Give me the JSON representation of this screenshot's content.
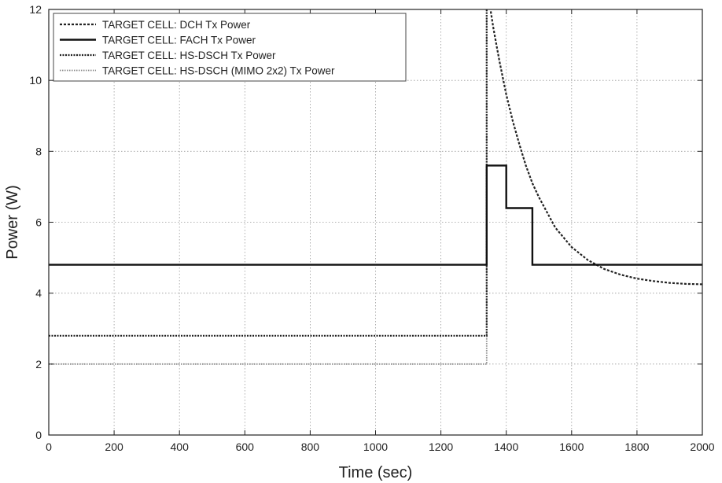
{
  "chart_data": {
    "type": "line",
    "title": "",
    "xlabel": "Time (sec)",
    "ylabel": "Power (W)",
    "xlim": [
      0,
      2000
    ],
    "ylim": [
      0,
      12
    ],
    "xticks": [
      0,
      200,
      400,
      600,
      800,
      1000,
      1200,
      1400,
      1600,
      1800,
      2000
    ],
    "yticks": [
      0,
      2,
      4,
      6,
      8,
      10,
      12
    ],
    "grid": true,
    "legend_position": "top-left",
    "series": [
      {
        "name": "TARGET CELL: DCH Tx Power",
        "style": "dashed",
        "color": "#222222",
        "x": [
          1340,
          1350,
          1360,
          1370,
          1380,
          1400,
          1420,
          1440,
          1460,
          1480,
          1500,
          1550,
          1600,
          1650,
          1700,
          1750,
          1800,
          1850,
          1900,
          1950,
          2000
        ],
        "y": [
          12.6,
          12.1,
          11.5,
          11.0,
          10.5,
          9.6,
          8.85,
          8.2,
          7.6,
          7.1,
          6.7,
          5.85,
          5.3,
          4.93,
          4.68,
          4.52,
          4.41,
          4.34,
          4.29,
          4.26,
          4.25
        ]
      },
      {
        "name": "TARGET CELL: FACH Tx Power",
        "style": "solid",
        "color": "#111111",
        "x": [
          0,
          1340,
          1340,
          1400,
          1400,
          1480,
          1480,
          2000
        ],
        "y": [
          4.8,
          4.8,
          7.6,
          7.6,
          6.4,
          6.4,
          4.8,
          4.8
        ]
      },
      {
        "name": "TARGET CELL: HS-DSCH Tx Power",
        "style": "dotted",
        "color": "#222222",
        "x": [
          0,
          1340,
          1340
        ],
        "y": [
          2.8,
          2.8,
          12.5
        ]
      },
      {
        "name": "TARGET CELL: HS-DSCH (MIMO 2x2) Tx Power",
        "style": "dotted-light",
        "color": "#8a8a8a",
        "x": [
          0,
          1340,
          1340
        ],
        "y": [
          2.0,
          2.0,
          12.5
        ]
      }
    ]
  }
}
